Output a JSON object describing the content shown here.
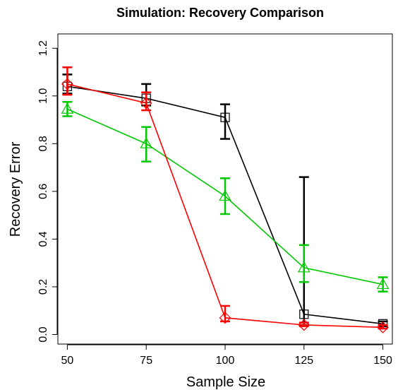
{
  "chart_data": {
    "type": "line",
    "title": "Simulation: Recovery Comparison",
    "xlabel": "Sample Size",
    "ylabel": "Recovery Error",
    "x": [
      50,
      75,
      100,
      125,
      150
    ],
    "x_tick_labels": [
      "50",
      "75",
      "100",
      "125",
      "150"
    ],
    "y_tick_labels": [
      "0.0",
      "0.2",
      "0.4",
      "0.6",
      "0.8",
      "1.0",
      "1.2"
    ],
    "xlim": [
      47,
      153
    ],
    "ylim": [
      -0.04,
      1.26
    ],
    "grid": false,
    "legend": "none",
    "series": [
      {
        "color": "#000000",
        "marker": "square",
        "values": [
          1.04,
          0.99,
          0.91,
          0.085,
          0.045
        ],
        "err_low": [
          1.01,
          0.96,
          0.82,
          0.04,
          0.035
        ],
        "err_high": [
          1.09,
          1.05,
          0.965,
          0.66,
          0.055
        ]
      },
      {
        "color": "#00c800",
        "marker": "triangle",
        "values": [
          0.945,
          0.8,
          0.58,
          0.28,
          0.21
        ],
        "err_low": [
          0.915,
          0.725,
          0.505,
          0.22,
          0.18
        ],
        "err_high": [
          0.975,
          0.87,
          0.655,
          0.375,
          0.24
        ]
      },
      {
        "color": "#ff0000",
        "marker": "diamond",
        "values": [
          1.05,
          0.97,
          0.07,
          0.04,
          0.03
        ],
        "err_low": [
          1.005,
          0.94,
          0.055,
          0.035,
          0.025
        ],
        "err_high": [
          1.12,
          1.015,
          0.12,
          0.05,
          0.04
        ]
      }
    ]
  }
}
